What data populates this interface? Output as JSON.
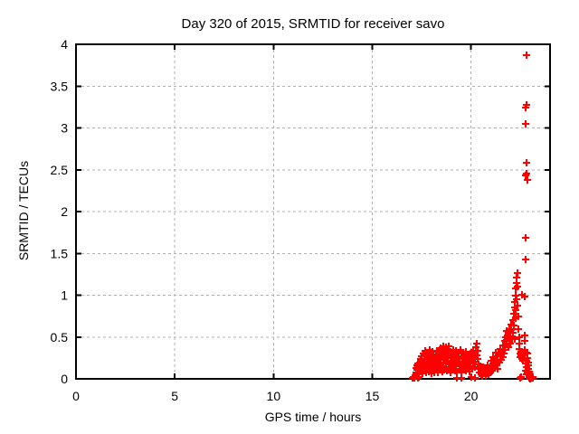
{
  "chart_data": {
    "type": "scatter",
    "marker": "plus",
    "title": "Day 320 of 2015, SRMTID for receiver savo",
    "xlabel": "GPS time / hours",
    "ylabel": "SRMTID / TECUs",
    "xlim": [
      0,
      24
    ],
    "ylim": [
      0,
      4
    ],
    "xticks": [
      0,
      5,
      10,
      15,
      20
    ],
    "yticks": [
      0,
      0.5,
      1,
      1.5,
      2,
      2.5,
      3,
      3.5,
      4
    ],
    "grid": true,
    "legend": "none",
    "colors": {
      "marker": "#ff0000",
      "grid": "#b0b0b0",
      "border": "#000000",
      "text": "#000000",
      "background": "#ffffff"
    },
    "points": [
      [
        17.05,
        0.01
      ],
      [
        17.07,
        0.02
      ],
      [
        17.1,
        0.01
      ],
      [
        17.12,
        0.02
      ],
      [
        17.15,
        0.01
      ],
      [
        17.17,
        0.03
      ],
      [
        17.2,
        0.13
      ],
      [
        17.22,
        0.08
      ],
      [
        17.25,
        0.16
      ],
      [
        17.27,
        0.11
      ],
      [
        17.3,
        0.02
      ],
      [
        17.3,
        0.18
      ],
      [
        17.32,
        0.01
      ],
      [
        17.33,
        0.14
      ],
      [
        17.35,
        0.02
      ],
      [
        17.37,
        0.1
      ],
      [
        17.4,
        0.2
      ],
      [
        17.42,
        0.15
      ],
      [
        17.44,
        0.24
      ],
      [
        17.46,
        0.09
      ],
      [
        17.48,
        0.18
      ],
      [
        17.5,
        0.27
      ],
      [
        17.52,
        0.12
      ],
      [
        17.54,
        0.21
      ],
      [
        17.56,
        0.07
      ],
      [
        17.58,
        0.3
      ],
      [
        17.6,
        0.16
      ],
      [
        17.62,
        0.23
      ],
      [
        17.64,
        0.1
      ],
      [
        17.66,
        0.28
      ],
      [
        17.68,
        0.14
      ],
      [
        17.7,
        0.33
      ],
      [
        17.72,
        0.19
      ],
      [
        17.74,
        0.08
      ],
      [
        17.76,
        0.25
      ],
      [
        17.78,
        0.13
      ],
      [
        17.8,
        0.29
      ],
      [
        17.82,
        0.17
      ],
      [
        17.84,
        0.09
      ],
      [
        17.86,
        0.31
      ],
      [
        17.88,
        0.22
      ],
      [
        17.9,
        0.35
      ],
      [
        17.92,
        0.12
      ],
      [
        17.94,
        0.26
      ],
      [
        17.96,
        0.18
      ],
      [
        17.98,
        0.07
      ],
      [
        18.0,
        0.24
      ],
      [
        18.02,
        0.15
      ],
      [
        18.04,
        0.32
      ],
      [
        18.06,
        0.1
      ],
      [
        18.08,
        0.21
      ],
      [
        18.1,
        0.28
      ],
      [
        18.12,
        0.16
      ],
      [
        18.14,
        0.08
      ],
      [
        18.16,
        0.25
      ],
      [
        18.18,
        0.19
      ],
      [
        18.2,
        0.11
      ],
      [
        18.22,
        0.27
      ],
      [
        18.24,
        0.18
      ],
      [
        18.26,
        0.33
      ],
      [
        18.28,
        0.13
      ],
      [
        18.3,
        0.22
      ],
      [
        18.32,
        0.08
      ],
      [
        18.34,
        0.29
      ],
      [
        18.36,
        0.16
      ],
      [
        18.38,
        0.24
      ],
      [
        18.4,
        0.35
      ],
      [
        18.42,
        0.12
      ],
      [
        18.44,
        0.28
      ],
      [
        18.46,
        0.2
      ],
      [
        18.48,
        0.37
      ],
      [
        18.5,
        0.15
      ],
      [
        18.52,
        0.31
      ],
      [
        18.54,
        0.09
      ],
      [
        18.56,
        0.26
      ],
      [
        18.58,
        0.39
      ],
      [
        18.6,
        0.18
      ],
      [
        18.62,
        0.33
      ],
      [
        18.64,
        0.23
      ],
      [
        18.66,
        0.11
      ],
      [
        18.68,
        0.36
      ],
      [
        18.7,
        0.27
      ],
      [
        18.72,
        0.14
      ],
      [
        18.74,
        0.38
      ],
      [
        18.76,
        0.21
      ],
      [
        18.78,
        0.3
      ],
      [
        18.8,
        0.1
      ],
      [
        18.82,
        0.34
      ],
      [
        18.84,
        0.25
      ],
      [
        18.86,
        0.39
      ],
      [
        18.88,
        0.17
      ],
      [
        18.9,
        0.28
      ],
      [
        18.92,
        0.12
      ],
      [
        18.94,
        0.32
      ],
      [
        18.96,
        0.22
      ],
      [
        18.98,
        0.08
      ],
      [
        19.0,
        0.26
      ],
      [
        19.02,
        0.17
      ],
      [
        19.05,
        0.3
      ],
      [
        19.08,
        0.13
      ],
      [
        19.1,
        0.24
      ],
      [
        19.12,
        0.35
      ],
      [
        19.15,
        0.19
      ],
      [
        19.18,
        0.1
      ],
      [
        19.2,
        0.28
      ],
      [
        19.22,
        0.15
      ],
      [
        19.25,
        0.33
      ],
      [
        19.28,
        0.22
      ],
      [
        19.3,
        0.09
      ],
      [
        19.3,
        0.01
      ],
      [
        19.32,
        0.26
      ],
      [
        19.35,
        0.18
      ],
      [
        19.38,
        0.31
      ],
      [
        19.4,
        0.12
      ],
      [
        19.42,
        0.24
      ],
      [
        19.45,
        0.35
      ],
      [
        19.48,
        0.16
      ],
      [
        19.5,
        0.27
      ],
      [
        19.5,
        0.01
      ],
      [
        19.52,
        0.08
      ],
      [
        19.55,
        0.21
      ],
      [
        19.58,
        0.3
      ],
      [
        19.6,
        0.14
      ],
      [
        19.62,
        0.25
      ],
      [
        19.65,
        0.11
      ],
      [
        19.68,
        0.28
      ],
      [
        19.7,
        0.19
      ],
      [
        19.72,
        0.32
      ],
      [
        19.75,
        0.1
      ],
      [
        19.78,
        0.23
      ],
      [
        19.8,
        0.16
      ],
      [
        19.82,
        0.29
      ],
      [
        19.85,
        0.13
      ],
      [
        19.88,
        0.26
      ],
      [
        19.9,
        0.2
      ],
      [
        19.92,
        0.09
      ],
      [
        19.95,
        0.24
      ],
      [
        19.98,
        0.15
      ],
      [
        20.0,
        0.31
      ],
      [
        20.0,
        0.02
      ],
      [
        20.02,
        0.22
      ],
      [
        20.05,
        0.12
      ],
      [
        20.08,
        0.27
      ],
      [
        20.1,
        0.18
      ],
      [
        20.12,
        0.34
      ],
      [
        20.15,
        0.25
      ],
      [
        20.18,
        0.14
      ],
      [
        20.2,
        0.3
      ],
      [
        20.2,
        0.01
      ],
      [
        20.22,
        0.21
      ],
      [
        20.25,
        0.38
      ],
      [
        20.28,
        0.28
      ],
      [
        20.3,
        0.42
      ],
      [
        20.32,
        0.33
      ],
      [
        20.35,
        0.24
      ],
      [
        20.38,
        0.17
      ],
      [
        20.4,
        0.12
      ],
      [
        20.43,
        0.08
      ],
      [
        20.46,
        0.15
      ],
      [
        20.5,
        0.05
      ],
      [
        20.53,
        0.11
      ],
      [
        20.56,
        0.03
      ],
      [
        20.6,
        0.09
      ],
      [
        20.63,
        0.14
      ],
      [
        20.66,
        0.06
      ],
      [
        20.7,
        0.1
      ],
      [
        20.73,
        0.04
      ],
      [
        20.76,
        0.13
      ],
      [
        20.8,
        0.07
      ],
      [
        20.83,
        0.16
      ],
      [
        20.86,
        0.11
      ],
      [
        20.9,
        0.05
      ],
      [
        20.93,
        0.12
      ],
      [
        20.96,
        0.08
      ],
      [
        21.0,
        0.15
      ],
      [
        21.03,
        0.22
      ],
      [
        21.06,
        0.1
      ],
      [
        21.1,
        0.18
      ],
      [
        21.13,
        0.26
      ],
      [
        21.16,
        0.13
      ],
      [
        21.2,
        0.24
      ],
      [
        21.23,
        0.31
      ],
      [
        21.26,
        0.17
      ],
      [
        21.3,
        0.27
      ],
      [
        21.33,
        0.12
      ],
      [
        21.36,
        0.22
      ],
      [
        21.4,
        0.3
      ],
      [
        21.43,
        0.19
      ],
      [
        21.46,
        0.28
      ],
      [
        21.5,
        0.36
      ],
      [
        21.53,
        0.23
      ],
      [
        21.56,
        0.32
      ],
      [
        21.6,
        0.26
      ],
      [
        21.63,
        0.4
      ],
      [
        21.66,
        0.3
      ],
      [
        21.7,
        0.45
      ],
      [
        21.73,
        0.35
      ],
      [
        21.76,
        0.5
      ],
      [
        21.78,
        0.42
      ],
      [
        21.8,
        0.57
      ],
      [
        21.82,
        0.47
      ],
      [
        21.85,
        0.52
      ],
      [
        21.88,
        0.38
      ],
      [
        21.9,
        0.55
      ],
      [
        21.92,
        0.45
      ],
      [
        21.95,
        0.6
      ],
      [
        21.98,
        0.5
      ],
      [
        22.0,
        0.42
      ],
      [
        22.02,
        0.58
      ],
      [
        22.05,
        0.65
      ],
      [
        22.08,
        0.48
      ],
      [
        22.1,
        0.7
      ],
      [
        22.12,
        0.55
      ],
      [
        22.15,
        0.78
      ],
      [
        22.17,
        0.64
      ],
      [
        22.2,
        0.85
      ],
      [
        22.2,
        0.48
      ],
      [
        22.22,
        0.92
      ],
      [
        22.24,
        0.72
      ],
      [
        22.25,
        1.0
      ],
      [
        22.27,
        0.82
      ],
      [
        22.28,
        1.08
      ],
      [
        22.3,
        1.15
      ],
      [
        22.3,
        0.95
      ],
      [
        22.32,
        1.21
      ],
      [
        22.33,
        1.26
      ],
      [
        22.35,
        1.1
      ],
      [
        22.36,
        0.88
      ],
      [
        22.38,
        0.75
      ],
      [
        22.4,
        0.6
      ],
      [
        22.42,
        0.5
      ],
      [
        22.44,
        0.42
      ],
      [
        22.46,
        0.36
      ],
      [
        22.48,
        0.3
      ],
      [
        22.5,
        0.26
      ],
      [
        22.5,
        0.01
      ],
      [
        22.52,
        0.32
      ],
      [
        22.54,
        0.28
      ],
      [
        22.55,
        0.02
      ],
      [
        22.56,
        0.24
      ],
      [
        22.58,
        1.01
      ],
      [
        22.58,
        0.3
      ],
      [
        22.6,
        0.27
      ],
      [
        22.62,
        0.22
      ],
      [
        22.64,
        0.29
      ],
      [
        22.66,
        0.25
      ],
      [
        22.7,
        0.98
      ],
      [
        22.7,
        0.45
      ],
      [
        22.72,
        0.35
      ],
      [
        22.74,
        0.52
      ],
      [
        22.75,
        1.43
      ],
      [
        22.76,
        0.18
      ],
      [
        22.77,
        1.69
      ],
      [
        22.77,
        3.05
      ],
      [
        22.78,
        2.43
      ],
      [
        22.78,
        3.24
      ],
      [
        22.78,
        0.1
      ],
      [
        22.79,
        0.22
      ],
      [
        22.8,
        2.58
      ],
      [
        22.8,
        3.87
      ],
      [
        22.8,
        0.31
      ],
      [
        22.8,
        0.05
      ],
      [
        22.82,
        2.45
      ],
      [
        22.82,
        3.28
      ],
      [
        22.82,
        0.14
      ],
      [
        22.84,
        2.38
      ],
      [
        22.84,
        0.08
      ],
      [
        22.85,
        0.3
      ],
      [
        22.87,
        0.25
      ],
      [
        22.88,
        0.2
      ],
      [
        22.9,
        0.16
      ],
      [
        22.92,
        0.12
      ],
      [
        22.94,
        0.09
      ],
      [
        22.95,
        0.01
      ],
      [
        22.96,
        0.06
      ],
      [
        22.98,
        0.04
      ],
      [
        23.0,
        0.02
      ],
      [
        23.0,
        0.0
      ],
      [
        23.02,
        0.01
      ],
      [
        23.05,
        0.02
      ],
      [
        23.08,
        0.01
      ],
      [
        23.1,
        0.01
      ],
      [
        23.12,
        0.02
      ],
      [
        23.15,
        0.01
      ]
    ]
  }
}
